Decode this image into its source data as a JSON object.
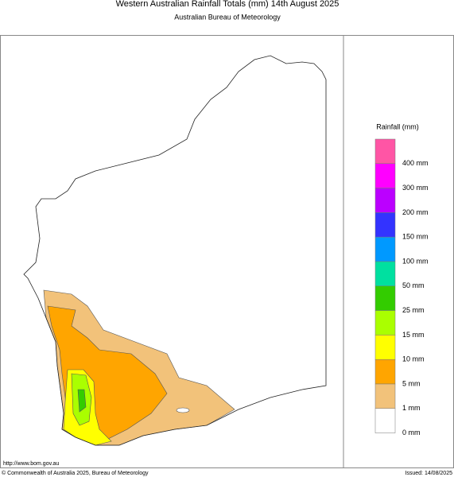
{
  "header": {
    "title": "Western Australian Rainfall Totals (mm) 14th August 2025",
    "subtitle": "Australian Bureau of Meteorology"
  },
  "legend": {
    "title": "Rainfall (mm)",
    "colors": [
      "#ff55a5",
      "#ff00ff",
      "#bb00ff",
      "#3333ff",
      "#0099ff",
      "#00e0a0",
      "#33cc00",
      "#aaff00",
      "#ffff00",
      "#ffa500",
      "#f2c27a",
      "#ffffff"
    ],
    "labels": [
      "400 mm",
      "300 mm",
      "200 mm",
      "150 mm",
      "100 mm",
      "50 mm",
      "25 mm",
      "15 mm",
      "10 mm",
      "5 mm",
      "1 mm",
      "0 mm"
    ]
  },
  "footer": {
    "url": "http://www.bom.gov.au",
    "copyright": "© Commonwealth of Australia 2025, Bureau of Meteorology",
    "issued": "Issued: 14/08/2025"
  }
}
